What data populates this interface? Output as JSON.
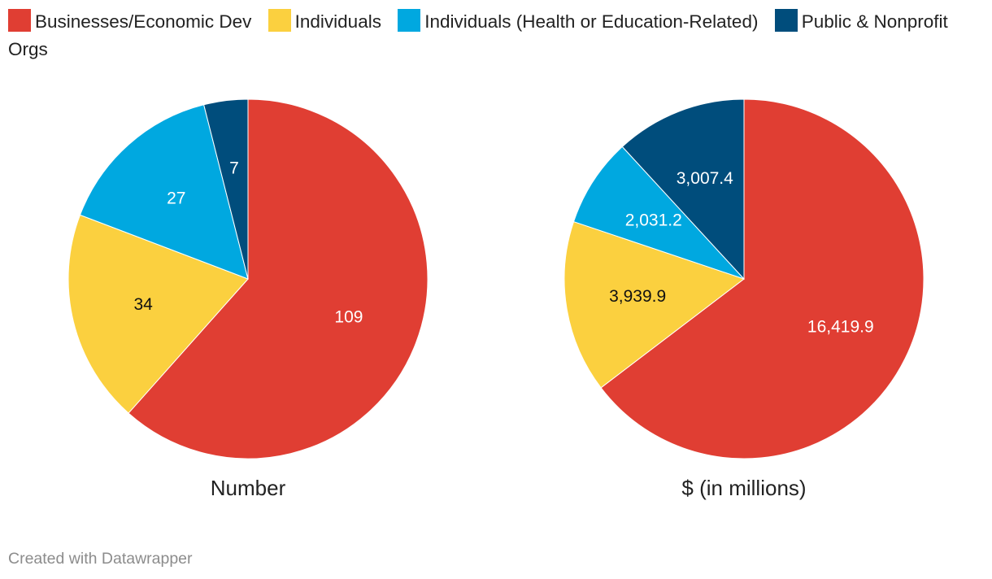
{
  "legend": [
    {
      "label": "Businesses/Economic Dev",
      "color": "#e03e33"
    },
    {
      "label": "Individuals",
      "color": "#fbd03f"
    },
    {
      "label": "Individuals (Health or Education-Related)",
      "color": "#00a8e0"
    },
    {
      "label": "Public & Nonprofit Orgs",
      "color": "#004d7c"
    }
  ],
  "chart_data": [
    {
      "type": "pie",
      "title": "Number",
      "categories": [
        "Businesses/Economic Dev",
        "Individuals",
        "Individuals (Health or Education-Related)",
        "Public & Nonprofit Orgs"
      ],
      "values": [
        109,
        34,
        27,
        7
      ],
      "labels": [
        "109",
        "34",
        "27",
        "7"
      ],
      "colors": [
        "#e03e33",
        "#fbd03f",
        "#00a8e0",
        "#004d7c"
      ]
    },
    {
      "type": "pie",
      "title": "$ (in millions)",
      "categories": [
        "Businesses/Economic Dev",
        "Individuals",
        "Individuals (Health or Education-Related)",
        "Public & Nonprofit Orgs"
      ],
      "values": [
        16419.9,
        3939.9,
        2031.2,
        3007.4
      ],
      "labels": [
        "16,419.9",
        "3,939.9",
        "2,031.2",
        "3,007.4"
      ],
      "colors": [
        "#e03e33",
        "#fbd03f",
        "#00a8e0",
        "#004d7c"
      ]
    }
  ],
  "footer": {
    "credit": "Created with Datawrapper"
  }
}
